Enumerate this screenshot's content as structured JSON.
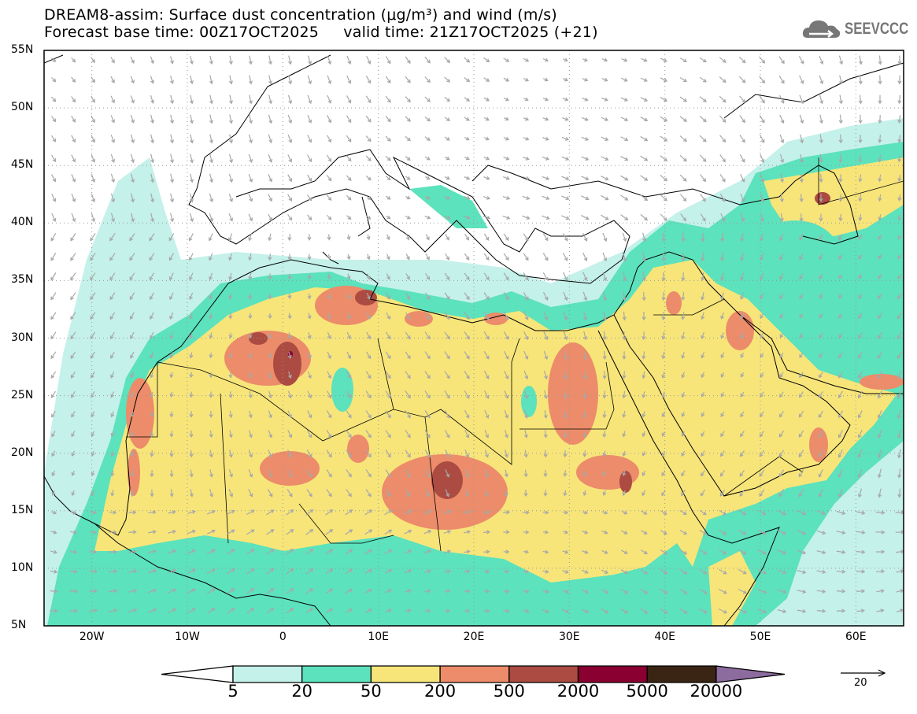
{
  "header": {
    "title_line1": "DREAM8-assim: Surface dust concentration (μg/m³) and wind (m/s)",
    "title_line2": "Forecast base time: 00Z17OCT2025     valid time: 21Z17OCT2025 (+21)"
  },
  "logo": {
    "text": "SEEVCCC",
    "icon": "cloud-icon"
  },
  "map": {
    "lon_range": [
      -25,
      65
    ],
    "lat_range": [
      5,
      55
    ],
    "lat_labels": [
      "55N",
      "50N",
      "45N",
      "40N",
      "35N",
      "30N",
      "25N",
      "20N",
      "15N",
      "10N",
      "5N"
    ],
    "lon_labels": [
      "20W",
      "10W",
      "0",
      "10E",
      "20E",
      "30E",
      "40E",
      "50E",
      "60E"
    ]
  },
  "colorbar": {
    "labels": [
      "5",
      "20",
      "50",
      "200",
      "500",
      "2000",
      "5000",
      "20000"
    ],
    "colors": [
      "#ffffff",
      "#c4f1ea",
      "#5ce2bc",
      "#f7e57a",
      "#ec8c6a",
      "#ab4b42",
      "#8a0030",
      "#3a2414",
      "#8c6b9e"
    ]
  },
  "wind_reference": {
    "value": "20"
  }
}
